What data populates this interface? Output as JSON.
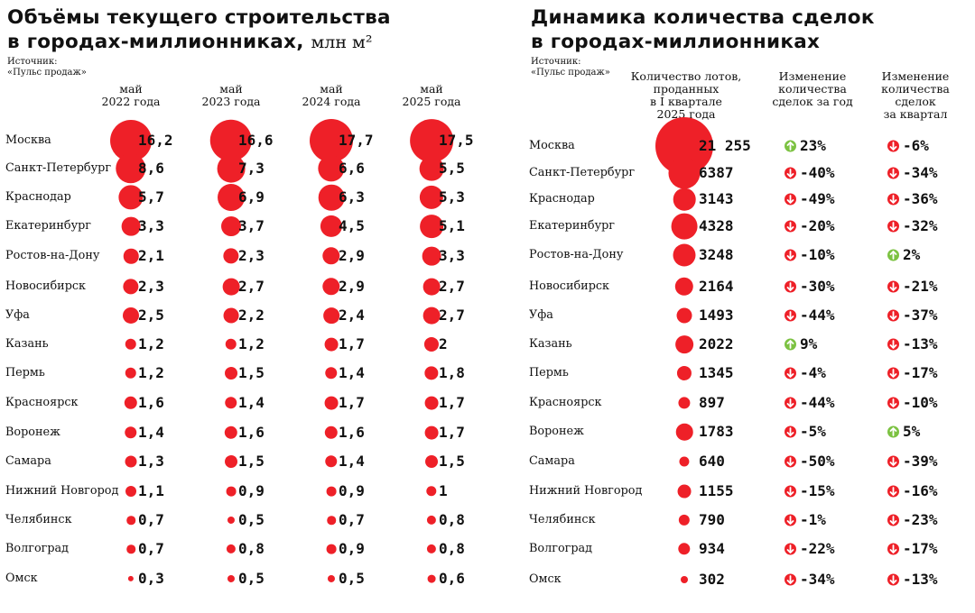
{
  "left": {
    "title_line1": "Объёмы текущего строительства",
    "title_line2": "в городах-миллионниках,",
    "unit": "млн м²",
    "source_line1": "Источник:",
    "source_line2": "«Пульс продаж»"
  },
  "right": {
    "title_line1": "Динамика количества сделок",
    "title_line2": "в городах-миллионниках",
    "source_line1": "Источник:",
    "source_line2": "«Пульс продаж»"
  },
  "colors": {
    "dot": "#ee2028",
    "up": "#7cc242",
    "down": "#ee2028"
  },
  "chart_data": [
    {
      "type": "table",
      "title": "Объёмы текущего строительства в городах-миллионниках, млн м²",
      "columns": [
        {
          "line1": "май",
          "line2": "2022 года"
        },
        {
          "line1": "май",
          "line2": "2023 года"
        },
        {
          "line1": "май",
          "line2": "2024 года"
        },
        {
          "line1": "май",
          "line2": "2025 года"
        }
      ],
      "rows": [
        {
          "city": "Москва",
          "values": [
            "16,2",
            "16,6",
            "17,7",
            "17,5"
          ]
        },
        {
          "city": "Санкт-Петербург",
          "values": [
            "8,6",
            "7,3",
            "6,6",
            "5,5"
          ]
        },
        {
          "city": "Краснодар",
          "values": [
            "5,7",
            "6,9",
            "6,3",
            "5,3"
          ]
        },
        {
          "city": "Екатеринбург",
          "values": [
            "3,3",
            "3,7",
            "4,5",
            "5,1"
          ]
        },
        {
          "city": "Ростов-на-Дону",
          "values": [
            "2,1",
            "2,3",
            "2,9",
            "3,3"
          ]
        },
        {
          "city": "Новосибирск",
          "values": [
            "2,3",
            "2,7",
            "2,9",
            "2,7"
          ]
        },
        {
          "city": "Уфа",
          "values": [
            "2,5",
            "2,2",
            "2,4",
            "2,7"
          ]
        },
        {
          "city": "Казань",
          "values": [
            "1,2",
            "1,2",
            "1,7",
            "2"
          ]
        },
        {
          "city": "Пермь",
          "values": [
            "1,2",
            "1,5",
            "1,4",
            "1,8"
          ]
        },
        {
          "city": "Красноярск",
          "values": [
            "1,6",
            "1,4",
            "1,7",
            "1,7"
          ]
        },
        {
          "city": "Воронеж",
          "values": [
            "1,4",
            "1,6",
            "1,6",
            "1,7"
          ]
        },
        {
          "city": "Самара",
          "values": [
            "1,3",
            "1,5",
            "1,4",
            "1,5"
          ]
        },
        {
          "city": "Нижний Новгород",
          "values": [
            "1,1",
            "0,9",
            "0,9",
            "1"
          ]
        },
        {
          "city": "Челябинск",
          "values": [
            "0,7",
            "0,5",
            "0,7",
            "0,8"
          ]
        },
        {
          "city": "Волгоград",
          "values": [
            "0,7",
            "0,8",
            "0,9",
            "0,8"
          ]
        },
        {
          "city": "Омск",
          "values": [
            "0,3",
            "0,5",
            "0,5",
            "0,6"
          ]
        }
      ]
    },
    {
      "type": "table",
      "title": "Динамика количества сделок в городах-миллионниках",
      "columns": [
        {
          "lines": [
            "Количество лотов,",
            "проданных",
            "в I квартале",
            "2025 года"
          ]
        },
        {
          "lines": [
            "Изменение",
            "количества",
            "сделок за год"
          ]
        },
        {
          "lines": [
            "Изменение",
            "количества",
            "сделок",
            "за квартал"
          ]
        }
      ],
      "rows": [
        {
          "city": "Москва",
          "lots": "21 255",
          "lots_value": 21255,
          "year": "23%",
          "year_dir": "up",
          "quarter": "-6%",
          "quarter_dir": "down"
        },
        {
          "city": "Санкт-Петербург",
          "lots": "6387",
          "lots_value": 6387,
          "year": "-40%",
          "year_dir": "down",
          "quarter": "-34%",
          "quarter_dir": "down"
        },
        {
          "city": "Краснодар",
          "lots": "3143",
          "lots_value": 3143,
          "year": "-49%",
          "year_dir": "down",
          "quarter": "-36%",
          "quarter_dir": "down"
        },
        {
          "city": "Екатеринбург",
          "lots": "4328",
          "lots_value": 4328,
          "year": "-20%",
          "year_dir": "down",
          "quarter": "-32%",
          "quarter_dir": "down"
        },
        {
          "city": "Ростов-на-Дону",
          "lots": "3248",
          "lots_value": 3248,
          "year": "-10%",
          "year_dir": "down",
          "quarter": "2%",
          "quarter_dir": "up"
        },
        {
          "city": "Новосибирск",
          "lots": "2164",
          "lots_value": 2164,
          "year": "-30%",
          "year_dir": "down",
          "quarter": "-21%",
          "quarter_dir": "down"
        },
        {
          "city": "Уфа",
          "lots": "1493",
          "lots_value": 1493,
          "year": "-44%",
          "year_dir": "down",
          "quarter": "-37%",
          "quarter_dir": "down"
        },
        {
          "city": "Казань",
          "lots": "2022",
          "lots_value": 2022,
          "year": "9%",
          "year_dir": "up",
          "quarter": "-13%",
          "quarter_dir": "down"
        },
        {
          "city": "Пермь",
          "lots": "1345",
          "lots_value": 1345,
          "year": "-4%",
          "year_dir": "down",
          "quarter": "-17%",
          "quarter_dir": "down"
        },
        {
          "city": "Красноярск",
          "lots": "897",
          "lots_value": 897,
          "year": "-44%",
          "year_dir": "down",
          "quarter": "-10%",
          "quarter_dir": "down"
        },
        {
          "city": "Воронеж",
          "lots": "1783",
          "lots_value": 1783,
          "year": "-5%",
          "year_dir": "down",
          "quarter": "5%",
          "quarter_dir": "up"
        },
        {
          "city": "Самара",
          "lots": "640",
          "lots_value": 640,
          "year": "-50%",
          "year_dir": "down",
          "quarter": "-39%",
          "quarter_dir": "down"
        },
        {
          "city": "Нижний Новгород",
          "lots": "1155",
          "lots_value": 1155,
          "year": "-15%",
          "year_dir": "down",
          "quarter": "-16%",
          "quarter_dir": "down"
        },
        {
          "city": "Челябинск",
          "lots": "790",
          "lots_value": 790,
          "year": "-1%",
          "year_dir": "down",
          "quarter": "-23%",
          "quarter_dir": "down"
        },
        {
          "city": "Волгоград",
          "lots": "934",
          "lots_value": 934,
          "year": "-22%",
          "year_dir": "down",
          "quarter": "-17%",
          "quarter_dir": "down"
        },
        {
          "city": "Омск",
          "lots": "302",
          "lots_value": 302,
          "year": "-34%",
          "year_dir": "down",
          "quarter": "-13%",
          "quarter_dir": "down"
        }
      ]
    }
  ]
}
